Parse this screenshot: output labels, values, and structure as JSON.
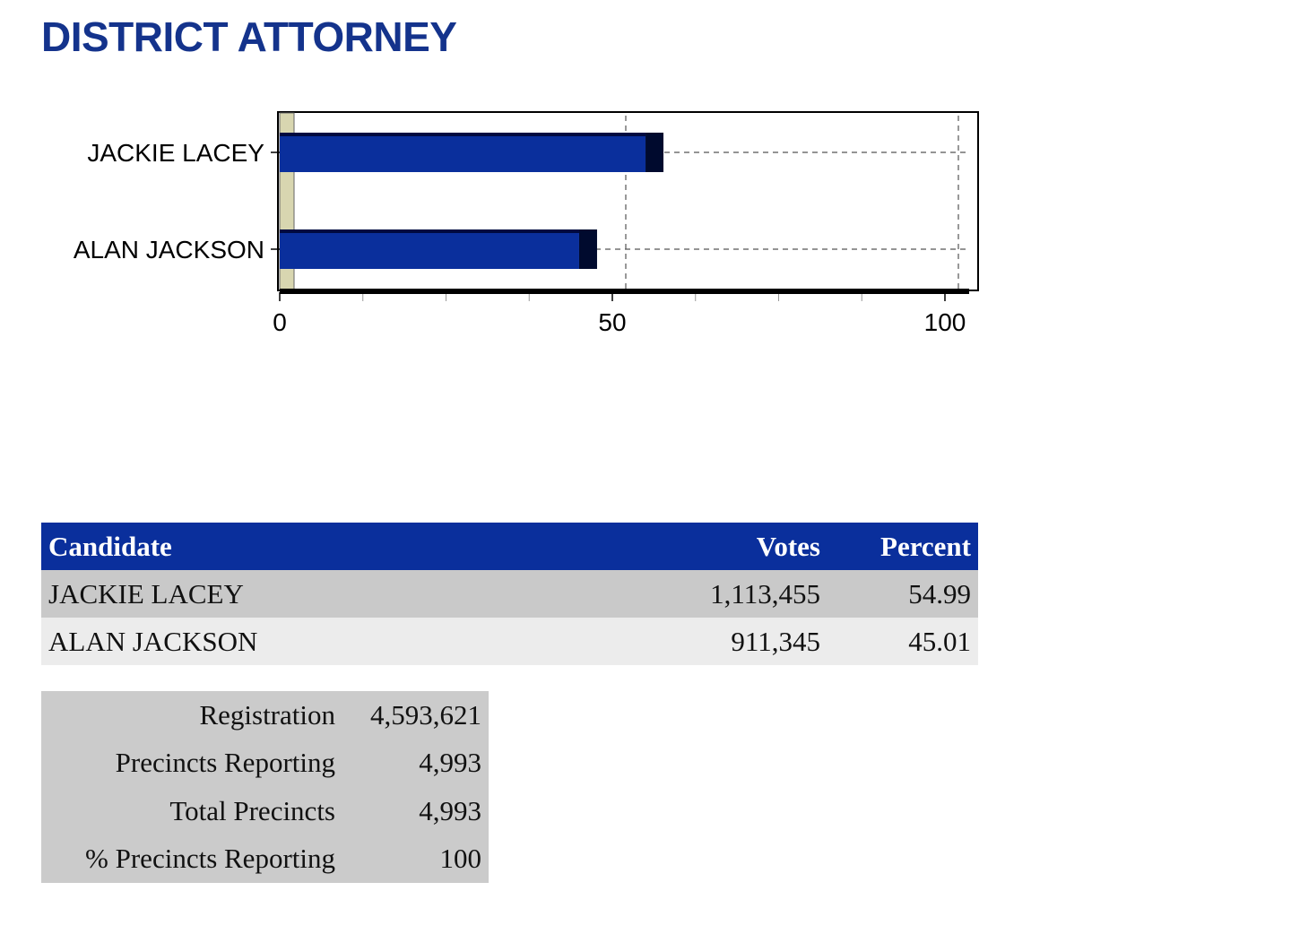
{
  "page_title": "DISTRICT ATTORNEY",
  "chart_data": {
    "type": "bar",
    "orientation": "horizontal",
    "categories": [
      "JACKIE LACEY",
      "ALAN JACKSON"
    ],
    "values": [
      54.99,
      45.01
    ],
    "xlim": [
      0,
      100
    ],
    "xticks": [
      0,
      50,
      100
    ],
    "bar_color": "#0a2f9c",
    "grid": "dashed vertical",
    "title": "",
    "xlabel": "",
    "ylabel": ""
  },
  "results": {
    "headers": {
      "candidate": "Candidate",
      "votes": "Votes",
      "percent": "Percent"
    },
    "rows": [
      {
        "candidate": "JACKIE LACEY",
        "votes": "1,113,455",
        "percent": "54.99"
      },
      {
        "candidate": "ALAN JACKSON",
        "votes": "911,345",
        "percent": "45.01"
      }
    ]
  },
  "stats": [
    {
      "label": "Registration",
      "value": "4,593,621"
    },
    {
      "label": "Precincts Reporting",
      "value": "4,993"
    },
    {
      "label": "Total Precincts",
      "value": "4,993"
    },
    {
      "label": "% Precincts Reporting",
      "value": "100"
    }
  ],
  "colors": {
    "title": "#14338c",
    "header_bg": "#0a2f9c",
    "row_odd": "#c9c9c9",
    "row_even": "#ececec",
    "stats_bg": "#cbcbcb"
  }
}
